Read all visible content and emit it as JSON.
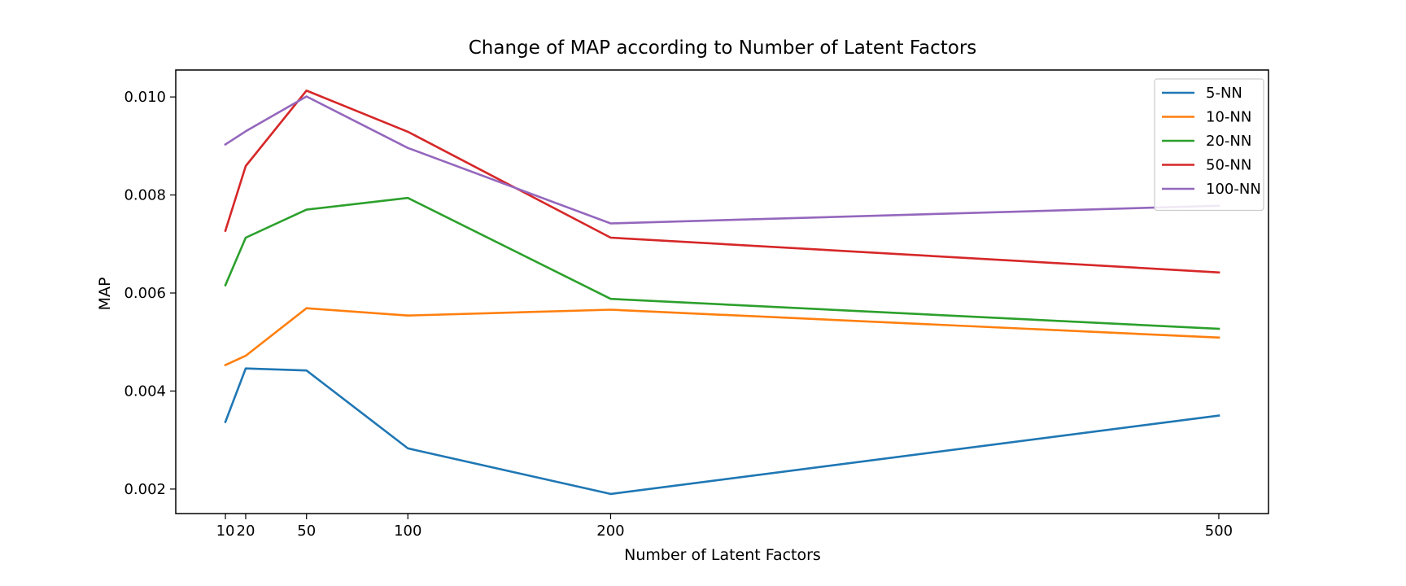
{
  "chart_data": {
    "type": "line",
    "title": "Change of MAP according to Number of Latent Factors",
    "xlabel": "Number of Latent Factors",
    "ylabel": "MAP",
    "x": [
      10,
      20,
      50,
      100,
      200,
      500
    ],
    "xticks": [
      10,
      20,
      50,
      100,
      200,
      500
    ],
    "xtick_labels": [
      "10",
      "20",
      "50",
      "100",
      "200",
      "500"
    ],
    "yticks": [
      0.002,
      0.004,
      0.006,
      0.008,
      0.01
    ],
    "ytick_labels": [
      "0.002",
      "0.004",
      "0.006",
      "0.008",
      "0.010"
    ],
    "xlim": [
      -14.5,
      524.5
    ],
    "ylim": [
      0.0015,
      0.01055
    ],
    "grid": false,
    "legend_position": "top-right",
    "series": [
      {
        "name": "5-NN",
        "color": "#1f77b4",
        "values": [
          0.00337,
          0.00446,
          0.00442,
          0.00283,
          0.0019,
          0.0035
        ]
      },
      {
        "name": "10-NN",
        "color": "#ff7f0e",
        "values": [
          0.00453,
          0.00472,
          0.00569,
          0.00554,
          0.00566,
          0.00509
        ]
      },
      {
        "name": "20-NN",
        "color": "#2ca02c",
        "values": [
          0.00616,
          0.00713,
          0.0077,
          0.00794,
          0.00588,
          0.00527
        ]
      },
      {
        "name": "50-NN",
        "color": "#d62728",
        "values": [
          0.00727,
          0.00859,
          0.01013,
          0.00929,
          0.00713,
          0.00642
        ]
      },
      {
        "name": "100-NN",
        "color": "#9467bd",
        "values": [
          0.00903,
          0.0093,
          0.01001,
          0.00896,
          0.00742,
          0.00778
        ]
      }
    ]
  }
}
